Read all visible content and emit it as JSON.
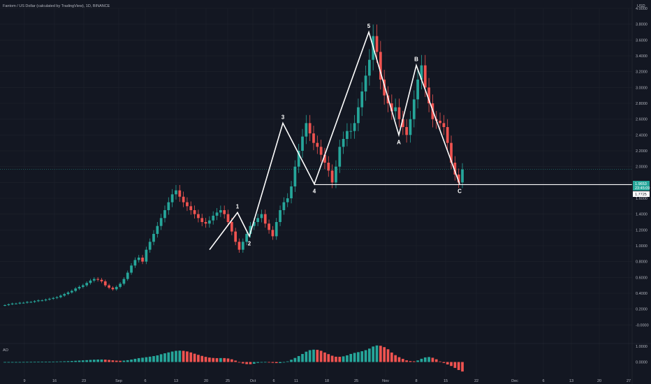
{
  "header": {
    "symbol_line": "Fantom / US Dollar (calculated by TradingView), 1D, BINANCE",
    "currency": "USD"
  },
  "price_tags": {
    "last_price": "1.9653",
    "countdown": "23:45:09",
    "level_price": "1.7725"
  },
  "indicator": {
    "label": "AO"
  },
  "colors": {
    "background": "#131722",
    "up": "#26a69a",
    "down": "#ef5350",
    "wave": "#ffffff",
    "grid": "#1e222d",
    "text": "#b2b5be"
  },
  "chart_data": [
    {
      "type": "candlestick",
      "ylim": [
        -0.2,
        4.0
      ],
      "yticks": [
        "4.0000",
        "3.8000",
        "3.6000",
        "3.4000",
        "3.2000",
        "3.0000",
        "2.8000",
        "2.6000",
        "2.4000",
        "2.2000",
        "2.0000",
        "1.8000",
        "1.6000",
        "1.4000",
        "1.2000",
        "1.0000",
        "0.8000",
        "0.6000",
        "0.4000",
        "0.2000",
        "-0.0000"
      ],
      "xticks": [
        "9",
        "16",
        "23",
        "Sep",
        "6",
        "13",
        "20",
        "25",
        "Oct",
        "6",
        "11",
        "18",
        "25",
        "Nov",
        "8",
        "15",
        "22",
        "Dec",
        "6",
        "13",
        "20",
        "27"
      ],
      "price_series": [
        0.25,
        0.26,
        0.27,
        0.27,
        0.28,
        0.28,
        0.29,
        0.29,
        0.3,
        0.31,
        0.31,
        0.32,
        0.33,
        0.34,
        0.35,
        0.37,
        0.39,
        0.41,
        0.43,
        0.46,
        0.48,
        0.5,
        0.53,
        0.56,
        0.58,
        0.57,
        0.55,
        0.5,
        0.47,
        0.45,
        0.48,
        0.52,
        0.58,
        0.66,
        0.75,
        0.82,
        0.85,
        0.8,
        0.95,
        1.05,
        1.15,
        1.25,
        1.35,
        1.45,
        1.55,
        1.65,
        1.7,
        1.62,
        1.55,
        1.5,
        1.45,
        1.4,
        1.35,
        1.3,
        1.28,
        1.32,
        1.38,
        1.42,
        1.45,
        1.4,
        1.3,
        1.18,
        1.05,
        0.95,
        1.05,
        1.15,
        1.25,
        1.3,
        1.35,
        1.4,
        1.28,
        1.2,
        1.12,
        1.3,
        1.45,
        1.55,
        1.6,
        1.75,
        2.0,
        2.2,
        2.38,
        2.55,
        2.42,
        2.3,
        2.25,
        2.15,
        2.05,
        1.95,
        1.8,
        2.0,
        2.25,
        2.35,
        2.45,
        2.45,
        2.55,
        2.75,
        2.95,
        3.15,
        3.35,
        3.65,
        3.45,
        3.1,
        2.9,
        2.8,
        2.7,
        2.75,
        2.6,
        2.5,
        2.4,
        2.6,
        2.85,
        3.1,
        3.28,
        3.0,
        2.8,
        2.6,
        2.58,
        2.55,
        2.5,
        2.3,
        2.05,
        1.9,
        1.8,
        1.9653
      ],
      "wave_points": [
        {
          "label": "1",
          "x": "Sep 25",
          "y": 1.42
        },
        {
          "label": "2",
          "x": "Sep 28",
          "y": 1.12
        },
        {
          "label": "3",
          "x": "Oct 6",
          "y": 2.55
        },
        {
          "label": "4",
          "x": "Oct 14",
          "y": 1.78
        },
        {
          "label": "5",
          "x": "Oct 27",
          "y": 3.7
        },
        {
          "label": "A",
          "x": "Nov 1",
          "y": 2.4
        },
        {
          "label": "B",
          "x": "Nov 8",
          "y": 3.28
        },
        {
          "label": "C",
          "x": "Nov 16",
          "y": 1.78
        }
      ],
      "wave_start": {
        "x": "Sep 20",
        "y": 0.95
      },
      "horizontal_level": 1.7725
    },
    {
      "type": "bar",
      "name": "AO",
      "ylim": [
        -0.6,
        1.0
      ],
      "yticks": [
        "1.0000",
        "0.0000"
      ]
    }
  ]
}
